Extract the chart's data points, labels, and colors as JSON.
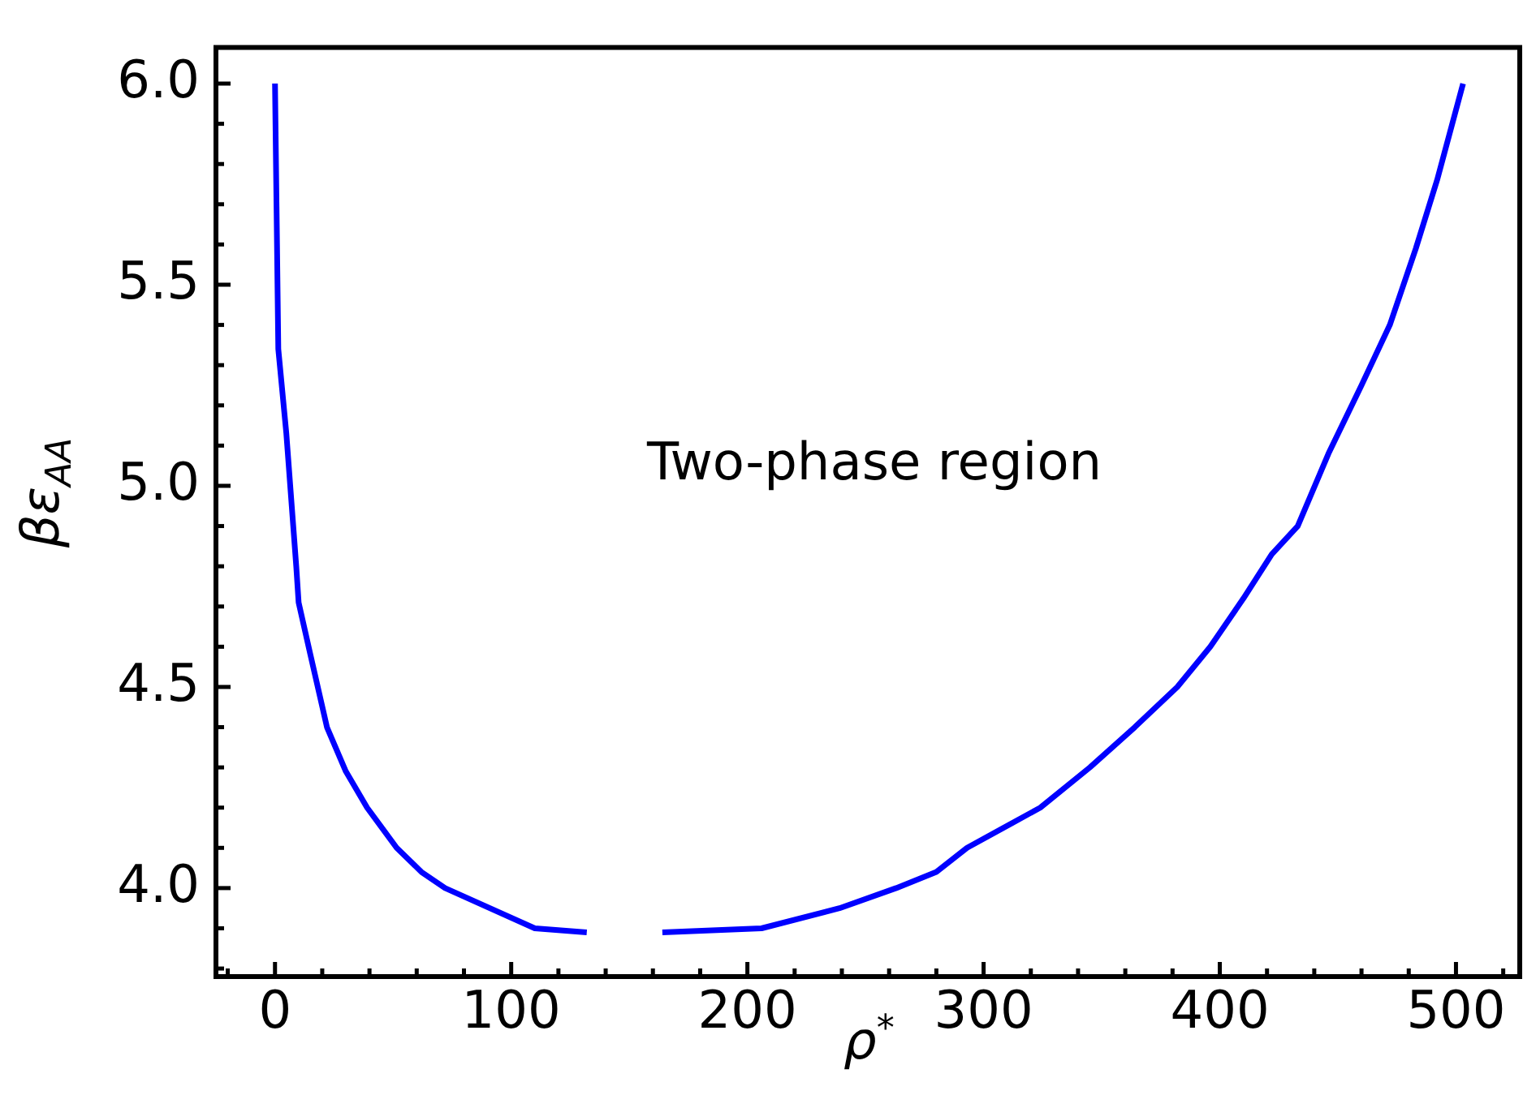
{
  "chart_data": {
    "type": "line",
    "xlabel": "ρ$^{*}$",
    "ylabel": "βε$_{AA}$",
    "annotations": [
      "Two-phase region"
    ],
    "series": [
      {
        "color": "#0000ff",
        "x": [
          0,
          1.4,
          4.8,
          9,
          10,
          15,
          22,
          30,
          39,
          51.5,
          62,
          72,
          110,
          132,
          148,
          164,
          206,
          239,
          263,
          280,
          293,
          324,
          345,
          364,
          382,
          396,
          410,
          422,
          433,
          446,
          460,
          472,
          483,
          492,
          503
        ],
        "values": [
          6.0,
          5.34,
          5.13,
          4.8,
          4.71,
          4.58,
          4.4,
          4.29,
          4.2,
          4.1,
          4.04,
          4.0,
          3.9,
          3.89,
          null,
          3.89,
          3.9,
          3.95,
          4.0,
          4.04,
          4.1,
          4.2,
          4.3,
          4.4,
          4.5,
          4.6,
          4.72,
          4.83,
          4.9,
          5.08,
          5.25,
          5.4,
          5.59,
          5.76,
          6.0
        ]
      }
    ],
    "xlim": [
      -25,
      527
    ],
    "ylim": [
      3.78,
      6.09
    ],
    "xticks": [
      {
        "value": -20,
        "label": null
      },
      0,
      {
        "value": 20,
        "label": null
      },
      {
        "value": 40,
        "label": null
      },
      {
        "value": 60,
        "label": null
      },
      {
        "value": 80,
        "label": null
      },
      100,
      {
        "value": 120,
        "label": null
      },
      {
        "value": 140,
        "label": null
      },
      {
        "value": 160,
        "label": null
      },
      {
        "value": 180,
        "label": null
      },
      200,
      {
        "value": 220,
        "label": null
      },
      {
        "value": 240,
        "label": null
      },
      {
        "value": 260,
        "label": null
      },
      {
        "value": 280,
        "label": null
      },
      300,
      {
        "value": 320,
        "label": null
      },
      {
        "value": 340,
        "label": null
      },
      {
        "value": 360,
        "label": null
      },
      {
        "value": 380,
        "label": null
      },
      400,
      {
        "value": 420,
        "label": null
      },
      {
        "value": 440,
        "label": null
      },
      {
        "value": 460,
        "label": null
      },
      {
        "value": 480,
        "label": null
      },
      500,
      {
        "value": 520,
        "label": null
      }
    ],
    "yticks": [
      {
        "value": 3.8,
        "label": null
      },
      {
        "value": 3.9,
        "label": null
      },
      {
        "value": 4.0,
        "label": "4.0"
      },
      {
        "value": 4.1,
        "label": null
      },
      {
        "value": 4.2,
        "label": null
      },
      {
        "value": 4.3,
        "label": null
      },
      {
        "value": 4.4,
        "label": null
      },
      {
        "value": 4.5,
        "label": "4.5"
      },
      {
        "value": 4.6,
        "label": null
      },
      {
        "value": 4.7,
        "label": null
      },
      {
        "value": 4.8,
        "label": null
      },
      {
        "value": 4.9,
        "label": null
      },
      {
        "value": 5.0,
        "label": "5.0"
      },
      {
        "value": 5.1,
        "label": null
      },
      {
        "value": 5.2,
        "label": null
      },
      {
        "value": 5.3,
        "label": null
      },
      {
        "value": 5.4,
        "label": null
      },
      {
        "value": 5.5,
        "label": "5.5"
      },
      {
        "value": 5.6,
        "label": null
      },
      {
        "value": 5.7,
        "label": null
      },
      {
        "value": 5.8,
        "label": null
      },
      {
        "value": 5.9,
        "label": null
      },
      {
        "value": 6.0,
        "label": "6.0"
      }
    ],
    "grid": false,
    "legend": false,
    "line_style": "solid",
    "marker": "none"
  }
}
